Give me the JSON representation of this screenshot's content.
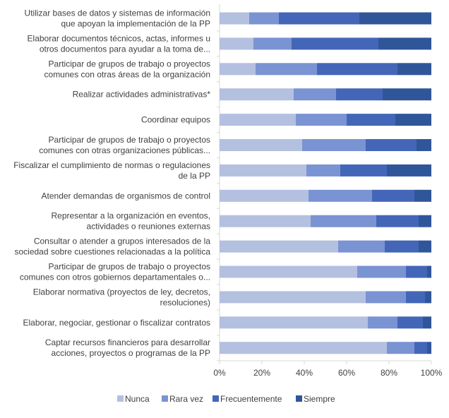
{
  "chart_data": {
    "type": "bar",
    "orientation": "horizontal",
    "stacked": true,
    "percent_stacked": true,
    "title": "",
    "xlabel": "",
    "ylabel": "",
    "xlim": [
      0,
      100
    ],
    "x_ticks": [
      "0%",
      "20%",
      "40%",
      "60%",
      "80%",
      "100%"
    ],
    "grid": false,
    "legend_position": "bottom",
    "categories": [
      [
        "Utilizar bases de datos y sistemas de información",
        "que apoyan la implementación de la PP"
      ],
      [
        "Elaborar documentos técnicos, actas, informes u",
        "otros documentos  para ayudar a la toma de..."
      ],
      [
        "Participar de grupos de trabajo o proyectos",
        "comunes con otras áreas de la organización"
      ],
      [
        "Realizar actividades administrativas*"
      ],
      [
        "Coordinar equipos"
      ],
      [
        "Participar de grupos de trabajo o proyectos",
        "comunes con otras organizaciones públicas..."
      ],
      [
        "Fiscalizar el cumplimiento de normas o regulaciones",
        "de la PP"
      ],
      [
        "Atender demandas de organismos de control"
      ],
      [
        "Representar a la organización en eventos,",
        "actividades o reuniones  externas"
      ],
      [
        "Consultar o atender a grupos interesados de la",
        "sociedad sobre cuestiones relacionadas a la política"
      ],
      [
        "Participar de grupos de trabajo o proyectos",
        "comunes con otros gobiernos departamentales o..."
      ],
      [
        "Elaborar normativa (proyectos de ley, decretos,",
        "resoluciones)"
      ],
      [
        "Elaborar, negociar, gestionar o fiscalizar contratos"
      ],
      [
        "Captar recursos financieros para desarrollar",
        "acciones, proyectos o programas de la PP"
      ]
    ],
    "series": [
      {
        "name": "Nunca",
        "color": "#b4c0e0",
        "values": [
          14,
          16,
          17,
          35,
          36,
          39,
          41,
          42,
          43,
          56,
          65,
          69,
          70,
          79
        ]
      },
      {
        "name": "Rara vez",
        "color": "#7a93d2",
        "values": [
          14,
          18,
          29,
          20,
          24,
          30,
          16,
          30,
          31,
          22,
          23,
          19,
          14,
          13
        ]
      },
      {
        "name": "Frecuentemente",
        "color": "#4466b8",
        "values": [
          38,
          41,
          38,
          22,
          23,
          24,
          22,
          20,
          20,
          16,
          10,
          9,
          12,
          6
        ]
      },
      {
        "name": "Siempre",
        "color": "#30569a",
        "values": [
          34,
          25,
          16,
          23,
          17,
          7,
          21,
          8,
          6,
          6,
          2,
          3,
          4,
          2
        ]
      }
    ]
  }
}
